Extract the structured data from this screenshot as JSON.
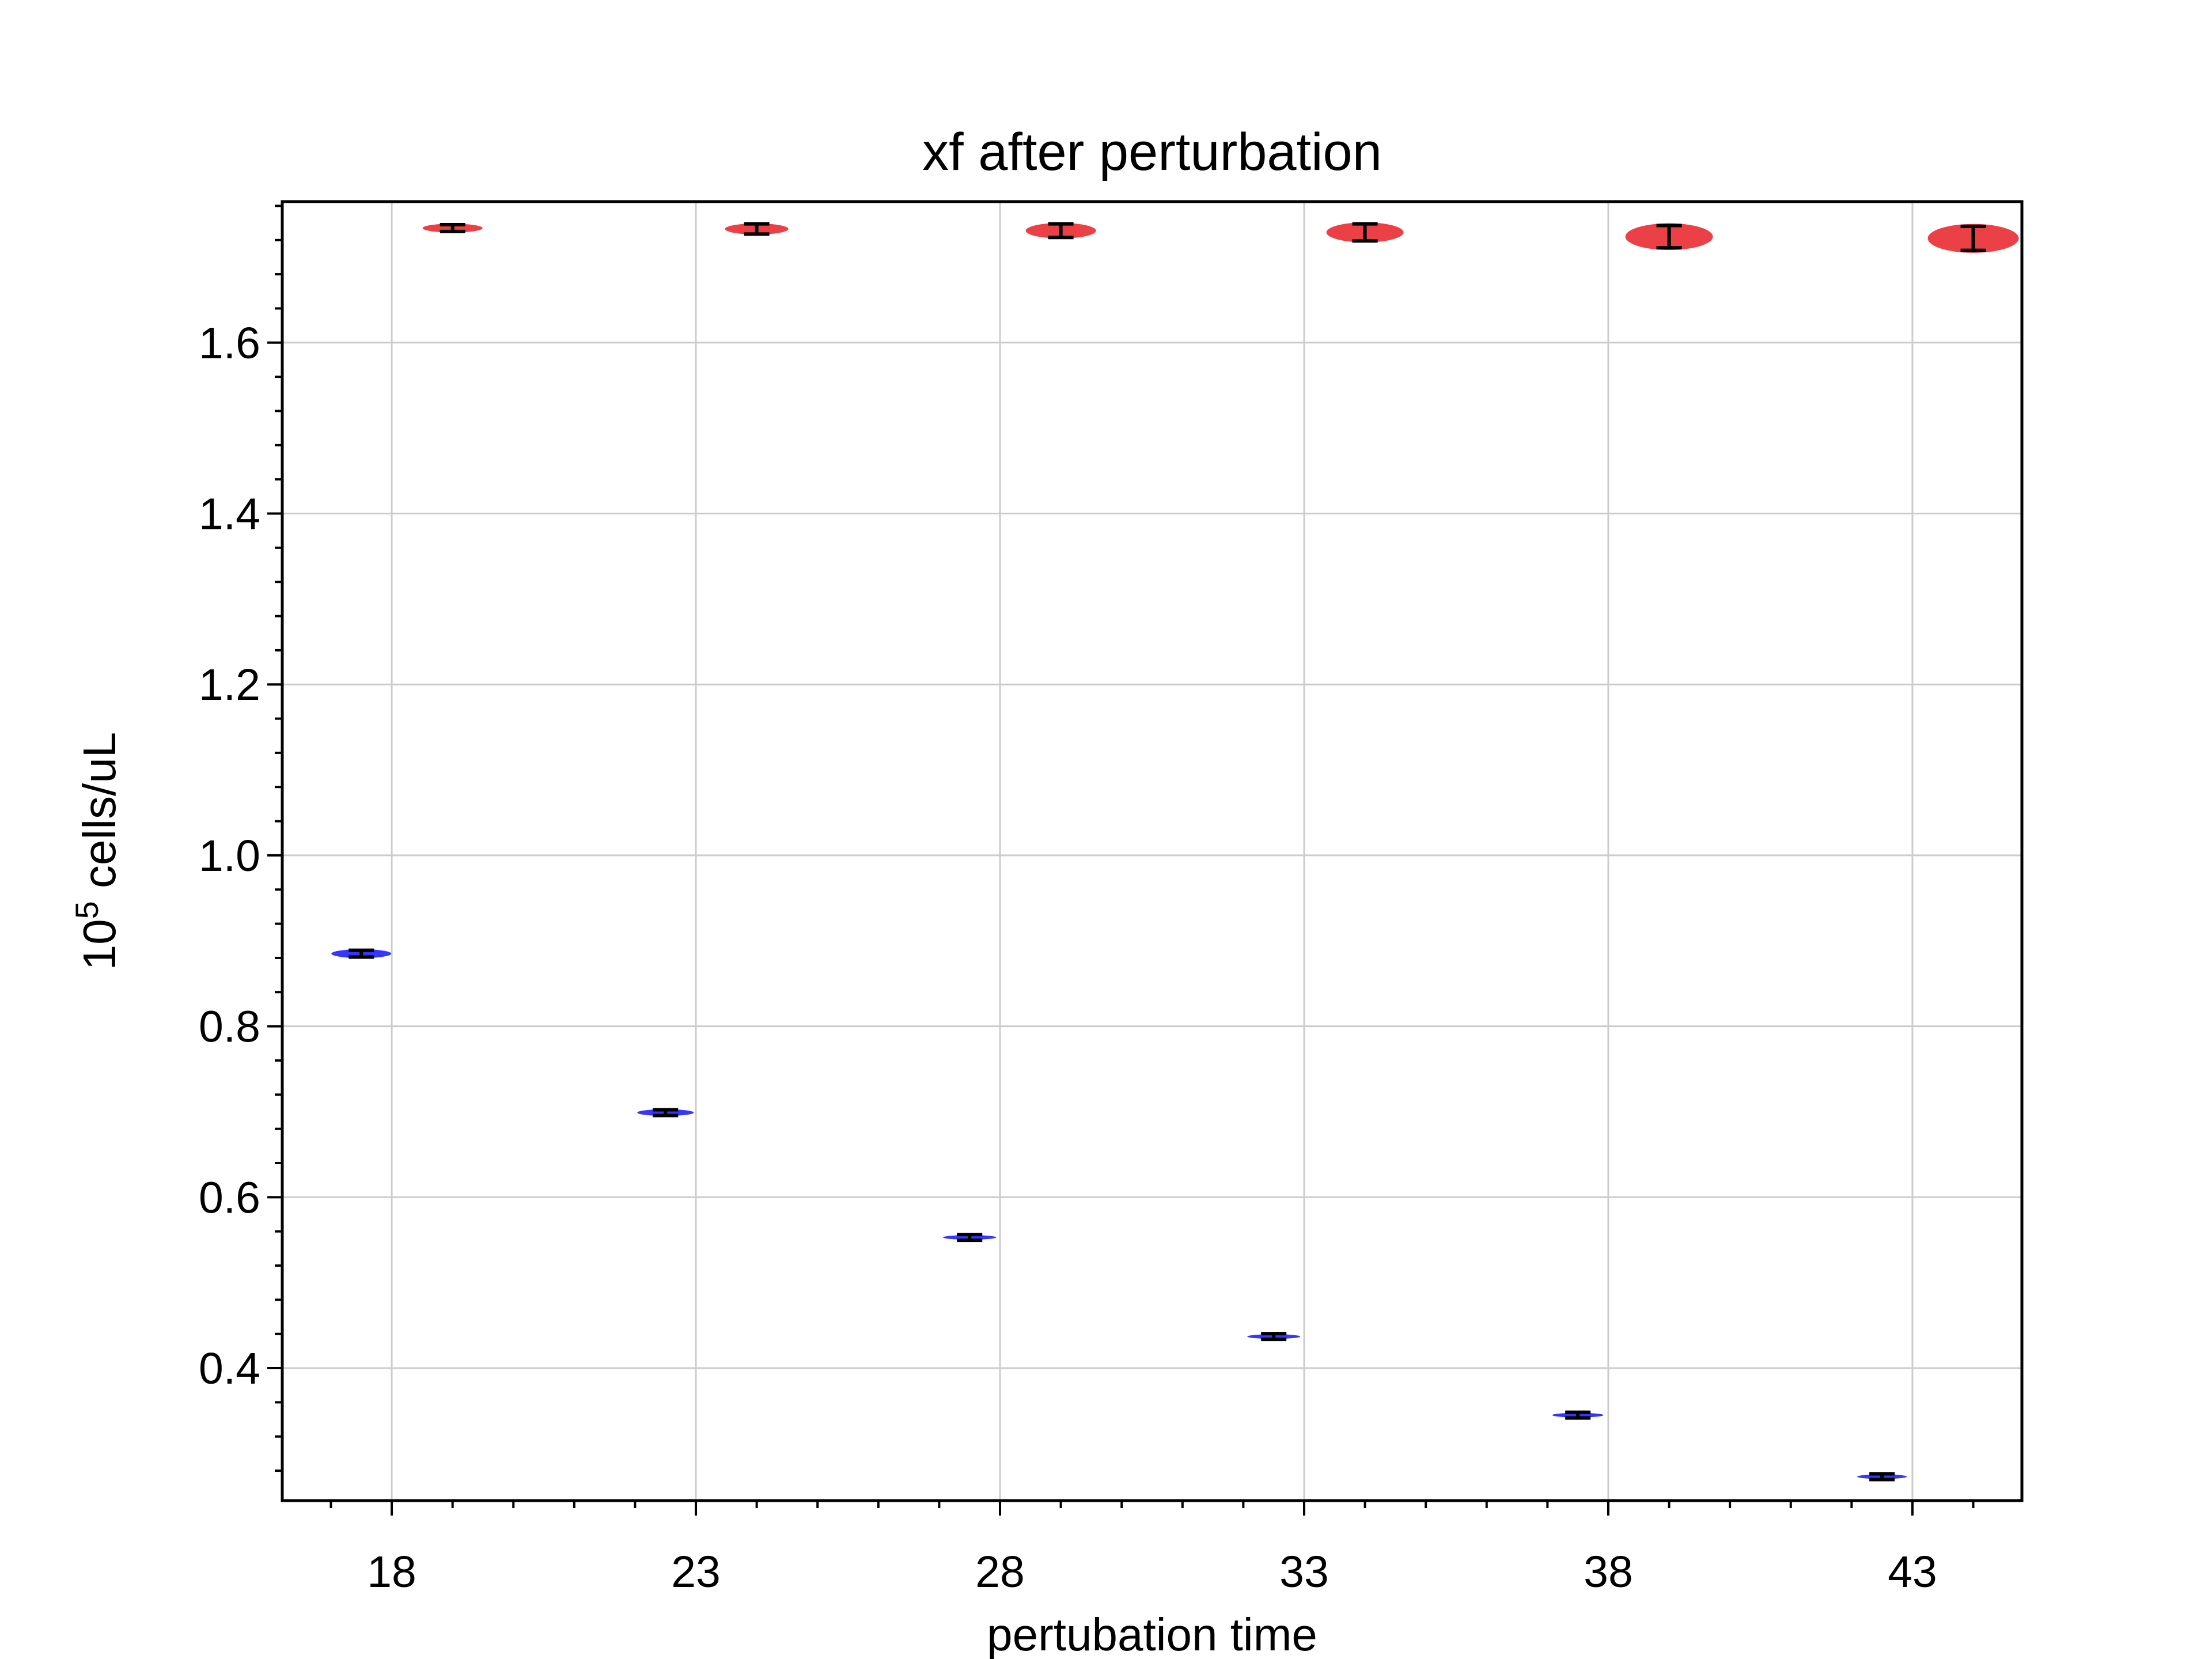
{
  "chart_data": {
    "type": "violin",
    "title": "xf after perturbation",
    "xlabel": "pertubation time",
    "ylabel_base": "10",
    "ylabel_exp": "5",
    "ylabel_unit": " cells/uL",
    "xlim": [
      16.2,
      44.8
    ],
    "ylim": [
      0.245,
      1.765
    ],
    "xticks": [
      18,
      23,
      28,
      33,
      38,
      43
    ],
    "xtick_labels": [
      "18",
      "23",
      "28",
      "33",
      "38",
      "43"
    ],
    "yticks": [
      0.4,
      0.6,
      0.8,
      1.0,
      1.2,
      1.4,
      1.6
    ],
    "ytick_labels": [
      "0.4",
      "0.6",
      "0.8",
      "1.0",
      "1.2",
      "1.4",
      "1.6"
    ],
    "grid": true,
    "series": [
      {
        "color": "#1a1aff",
        "points": [
          {
            "x": 17.5,
            "y": 0.885,
            "err": 0.004,
            "spread": 0.004
          },
          {
            "x": 22.5,
            "y": 0.699,
            "err": 0.003,
            "spread": 0.003
          },
          {
            "x": 27.5,
            "y": 0.553,
            "err": 0.003,
            "spread": 0.002
          },
          {
            "x": 32.5,
            "y": 0.437,
            "err": 0.002,
            "spread": 0.002
          },
          {
            "x": 37.5,
            "y": 0.345,
            "err": 0.002,
            "spread": 0.0015
          },
          {
            "x": 42.5,
            "y": 0.273,
            "err": 0.002,
            "spread": 0.001
          }
        ]
      },
      {
        "color": "#e8262b",
        "points": [
          {
            "x": 19.0,
            "y": 1.734,
            "err": 0.004,
            "spread": 0.004
          },
          {
            "x": 24.0,
            "y": 1.733,
            "err": 0.006,
            "spread": 0.005
          },
          {
            "x": 29.0,
            "y": 1.731,
            "err": 0.008,
            "spread": 0.007
          },
          {
            "x": 34.0,
            "y": 1.729,
            "err": 0.01,
            "spread": 0.009
          },
          {
            "x": 39.0,
            "y": 1.724,
            "err": 0.013,
            "spread": 0.012
          },
          {
            "x": 44.0,
            "y": 1.722,
            "err": 0.014,
            "spread": 0.013
          }
        ]
      }
    ]
  }
}
